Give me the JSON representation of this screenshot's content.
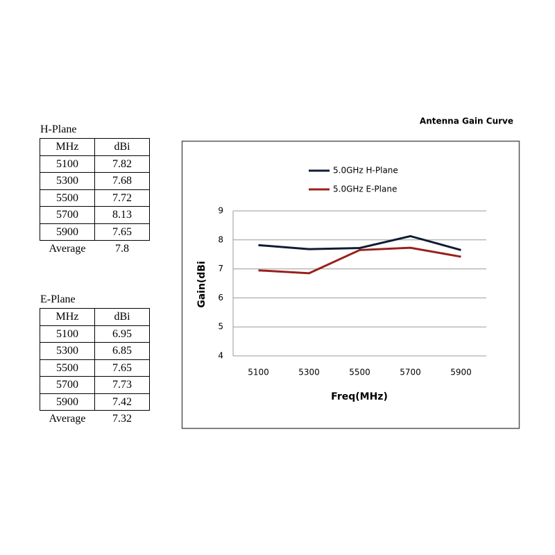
{
  "tables": [
    {
      "title": "H-Plane",
      "header": [
        "MHz",
        "dBi"
      ],
      "rows": [
        [
          5100,
          7.82
        ],
        [
          5300,
          7.68
        ],
        [
          5500,
          7.72
        ],
        [
          5700,
          8.13
        ],
        [
          5900,
          7.65
        ]
      ],
      "footer": [
        "Average",
        7.8
      ]
    },
    {
      "title": "E-Plane",
      "header": [
        "MHz",
        "dBi"
      ],
      "rows": [
        [
          5100,
          6.95
        ],
        [
          5300,
          6.85
        ],
        [
          5500,
          7.65
        ],
        [
          5700,
          7.73
        ],
        [
          5900,
          7.42
        ]
      ],
      "footer": [
        "Average",
        7.32
      ]
    }
  ],
  "chart_data": {
    "type": "line",
    "title": "Antenna Gain Curve",
    "categories": [
      "5100",
      "5300",
      "5500",
      "5700",
      "5900"
    ],
    "series": [
      {
        "name": "5.0GHz H-Plane",
        "color": "#0f1c33",
        "values": [
          7.82,
          7.68,
          7.72,
          8.13,
          7.65
        ]
      },
      {
        "name": "5.0GHz E-Plane",
        "color": "#9a1f1a",
        "values": [
          6.95,
          6.85,
          7.65,
          7.73,
          7.42
        ]
      }
    ],
    "ylim": [
      4,
      9
    ],
    "yticks": [
      4,
      5,
      6,
      7,
      8,
      9
    ],
    "xlabel": "Freq(MHz)",
    "ylabel": "Gain(dBi",
    "grid": true,
    "legend": "top"
  }
}
